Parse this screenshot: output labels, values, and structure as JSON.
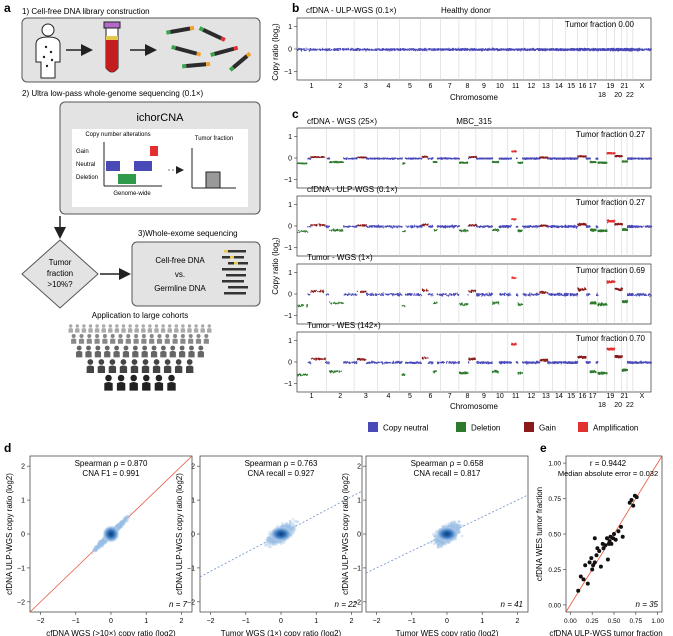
{
  "panel_a": {
    "letter": "a",
    "step1": "1) Cell-free DNA library construction",
    "step2": "2) Ultra low-pass whole-genome sequencing (0.1×)",
    "ichor_title": "ichorCNA",
    "cna_label": "Copy number alterations",
    "gain": "Gain",
    "neutral": "Neutral",
    "deletion": "Deletion",
    "genome_wide": "Genome-wide",
    "tumor_fraction": "Tumor fraction",
    "decision": [
      "Tumor",
      "fraction",
      ">10%?"
    ],
    "step3": "3)Whole-exome sequencing",
    "cfdna": "Cell-free DNA",
    "vs": "vs.",
    "germline": "Germline DNA",
    "application": "Application to large cohorts"
  },
  "panel_b": {
    "letter": "b",
    "title": "cfDNA - ULP-WGS (0.1×)",
    "subtitle": "Healthy donor",
    "tf_label": "Tumor fraction 0.00",
    "xlabel": "Chromosome"
  },
  "panel_c": {
    "letter": "c",
    "sample": "MBC_315",
    "ylabel": "Copy ratio (log2)",
    "xlabel": "Chromosome",
    "tracks": [
      {
        "title": "cfDNA - WGS (25×)",
        "tf": "Tumor fraction 0.27"
      },
      {
        "title": "cfDNA - ULP-WGS (0.1×)",
        "tf": "Tumor fraction 0.27"
      },
      {
        "title": "Tumor - WGS (1×)",
        "tf": "Tumor fraction 0.69"
      },
      {
        "title": "Tumor - WES (142×)",
        "tf": "Tumor fraction 0.70"
      }
    ]
  },
  "chromosomes_top": [
    "1",
    "2",
    "3",
    "4",
    "5",
    "6",
    "7",
    "8",
    "9",
    "10",
    "11",
    "12",
    "13",
    "14",
    "15",
    "16",
    "17",
    "19",
    "21",
    "X"
  ],
  "chromosomes_bottom": [
    "18",
    "20",
    "22"
  ],
  "legend": {
    "items": [
      {
        "label": "Copy neutral",
        "color": "#4a49b8"
      },
      {
        "label": "Deletion",
        "color": "#2d7a2d"
      },
      {
        "label": "Gain",
        "color": "#8b1a1a"
      },
      {
        "label": "Amplification",
        "color": "#e23030"
      }
    ]
  },
  "panel_d": {
    "letter": "d",
    "ylabel": "cfDNA ULP-WGS copy ratio (log2)",
    "plots": [
      {
        "stat1": "Spearman ρ = 0.870",
        "stat2": "CNA F1 = 0.991",
        "n": "n = 7",
        "xlabel": "cfDNA WGS (>10×) copy ratio (log2)"
      },
      {
        "stat1": "Spearman ρ = 0.763",
        "stat2": "CNA recall = 0.927",
        "n": "n = 22",
        "xlabel": "Tumor WGS (1×) copy ratio (log2)"
      },
      {
        "stat1": "Spearman ρ = 0.658",
        "stat2": "CNA recall = 0.817",
        "n": "n = 41",
        "xlabel": "Tumor WES copy ratio (log2)"
      }
    ]
  },
  "panel_e": {
    "letter": "e",
    "stat1": "r = 0.9442",
    "stat2": "Median absolute error = 0.032",
    "n": "n = 35",
    "xlabel": "cfDNA ULP-WGS tumor fraction",
    "ylabel": "cfDNA WES tumor fraction"
  },
  "chart_data": [
    {
      "type": "scatter",
      "panel": "b",
      "title": "cfDNA - ULP-WGS (0.1×)",
      "xlabel": "Chromosome",
      "ylabel": "Copy ratio (log2)",
      "ylim": [
        -1,
        1
      ],
      "y_ticks": [
        -1,
        0,
        1
      ]
    },
    {
      "type": "scatter",
      "panel": "c",
      "ylabel": "Copy ratio (log2)",
      "xlabel": "Chromosome",
      "ylim": [
        -1,
        1
      ],
      "y_ticks": [
        -1,
        0,
        1
      ]
    },
    {
      "type": "scatter",
      "panel": "d",
      "xlim": [
        -2,
        2
      ],
      "ylim": [
        -2,
        2
      ],
      "x_ticks": [
        -2,
        -1,
        0,
        1,
        2
      ],
      "y_ticks": [
        -2,
        -1,
        0,
        1,
        2
      ]
    },
    {
      "type": "scatter",
      "panel": "e",
      "xlabel": "cfDNA ULP-WGS tumor fraction",
      "ylabel": "cfDNA WES tumor fraction",
      "xlim": [
        0,
        1
      ],
      "ylim": [
        0,
        1
      ],
      "x_ticks": [
        "0.00",
        "0.25",
        "0.50",
        "0.75",
        "1.00"
      ],
      "y_ticks": [
        "0.00",
        "0.25",
        "0.50",
        "0.75",
        "1.00"
      ],
      "points": [
        [
          0.09,
          0.1
        ],
        [
          0.12,
          0.2
        ],
        [
          0.15,
          0.18
        ],
        [
          0.17,
          0.28
        ],
        [
          0.2,
          0.15
        ],
        [
          0.22,
          0.3
        ],
        [
          0.24,
          0.33
        ],
        [
          0.25,
          0.25
        ],
        [
          0.26,
          0.28
        ],
        [
          0.28,
          0.3
        ],
        [
          0.28,
          0.47
        ],
        [
          0.3,
          0.35
        ],
        [
          0.31,
          0.4
        ],
        [
          0.33,
          0.38
        ],
        [
          0.35,
          0.27
        ],
        [
          0.37,
          0.43
        ],
        [
          0.38,
          0.4
        ],
        [
          0.4,
          0.42
        ],
        [
          0.42,
          0.47
        ],
        [
          0.43,
          0.32
        ],
        [
          0.44,
          0.43
        ],
        [
          0.45,
          0.45
        ],
        [
          0.46,
          0.48
        ],
        [
          0.47,
          0.43
        ],
        [
          0.49,
          0.47
        ],
        [
          0.5,
          0.5
        ],
        [
          0.52,
          0.46
        ],
        [
          0.55,
          0.52
        ],
        [
          0.58,
          0.55
        ],
        [
          0.6,
          0.48
        ],
        [
          0.68,
          0.72
        ],
        [
          0.7,
          0.74
        ],
        [
          0.72,
          0.7
        ],
        [
          0.74,
          0.77
        ],
        [
          0.76,
          0.76
        ]
      ]
    }
  ]
}
